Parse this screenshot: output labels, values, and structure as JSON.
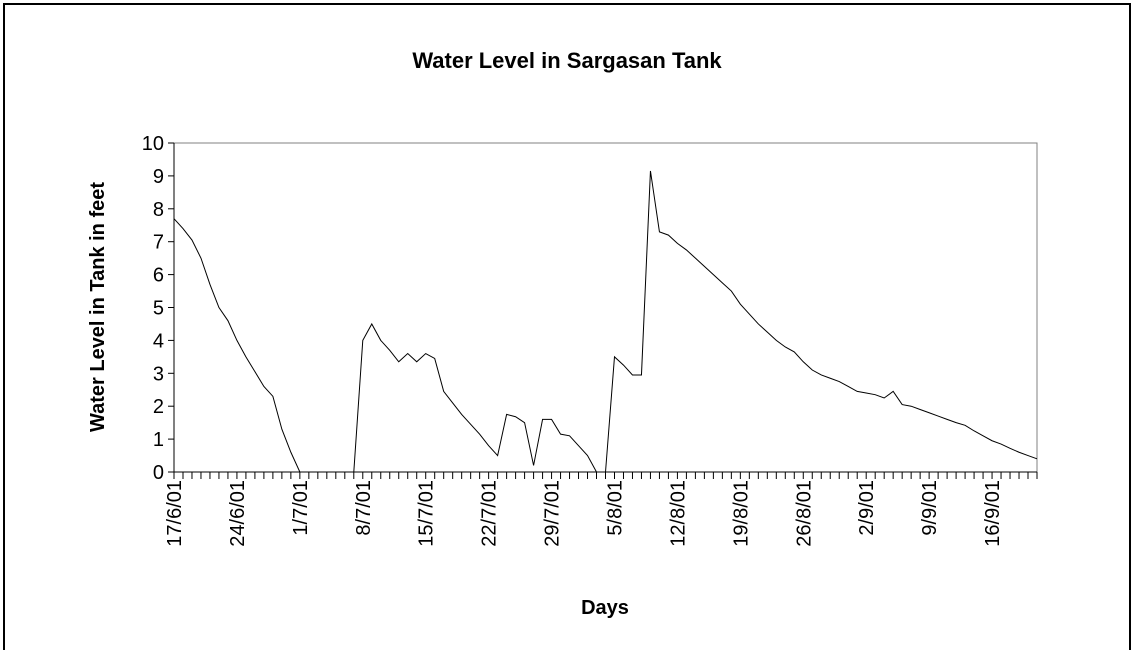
{
  "chart_data": {
    "type": "line",
    "title": "Water Level in Sargasan Tank",
    "x_label": "Days",
    "y_label": "Water Level in Tank  in feet",
    "categories": [
      "17/6/01",
      null,
      null,
      null,
      null,
      null,
      null,
      "24/6/01",
      null,
      null,
      null,
      null,
      null,
      null,
      "1/7/01",
      null,
      null,
      null,
      null,
      null,
      null,
      "8/7/01",
      null,
      null,
      null,
      null,
      null,
      null,
      "15/7/01",
      null,
      null,
      null,
      null,
      null,
      null,
      "22/7/01",
      null,
      null,
      null,
      null,
      null,
      null,
      "29/7/01",
      null,
      null,
      null,
      null,
      null,
      null,
      "5/8/01",
      null,
      null,
      null,
      null,
      null,
      null,
      "12/8/01",
      null,
      null,
      null,
      null,
      null,
      null,
      "19/8/01",
      null,
      null,
      null,
      null,
      null,
      null,
      "26/8/01",
      null,
      null,
      null,
      null,
      null,
      null,
      "2/9/01",
      null,
      null,
      null,
      null,
      null,
      null,
      "9/9/01",
      null,
      null,
      null,
      null,
      null,
      null,
      "16/9/01",
      null,
      null,
      null,
      null,
      null
    ],
    "values": [
      7.7,
      7.4,
      7.05,
      6.5,
      5.7,
      5.0,
      4.6,
      4.0,
      3.5,
      3.05,
      2.6,
      2.3,
      1.3,
      0.6,
      0,
      0,
      0,
      0,
      0,
      0,
      0,
      4.0,
      4.5,
      4.0,
      3.7,
      3.35,
      3.6,
      3.35,
      3.6,
      3.45,
      2.45,
      2.1,
      1.75,
      1.45,
      1.15,
      0.8,
      0.5,
      1.75,
      1.68,
      1.5,
      0.2,
      1.6,
      1.6,
      1.15,
      1.1,
      0.8,
      0.5,
      0,
      0,
      3.5,
      3.25,
      2.95,
      2.95,
      9.15,
      7.3,
      7.2,
      6.95,
      6.75,
      6.5,
      6.25,
      6.0,
      5.75,
      5.5,
      5.1,
      4.8,
      4.5,
      4.25,
      4.0,
      3.8,
      3.65,
      3.35,
      3.1,
      2.95,
      2.85,
      2.75,
      2.6,
      2.45,
      2.4,
      2.35,
      2.25,
      2.45,
      2.05,
      2.0,
      1.9,
      1.8,
      1.7,
      1.6,
      1.5,
      1.42,
      1.25,
      1.1,
      0.95,
      0.85,
      0.72,
      0.6,
      0.5,
      0.4
    ],
    "color": "#000000",
    "ylim": [
      0,
      10
    ],
    "yticks": [
      0,
      1,
      2,
      3,
      4,
      5,
      6,
      7,
      8,
      9,
      10
    ],
    "grid": false
  }
}
